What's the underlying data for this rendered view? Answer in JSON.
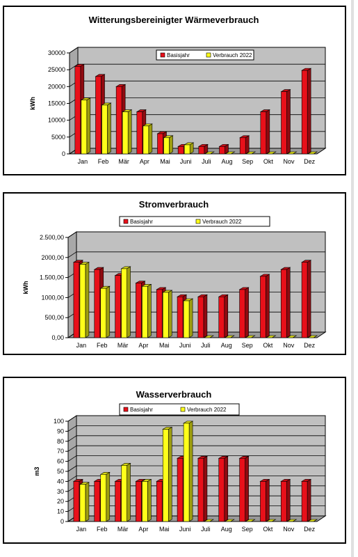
{
  "chart_data": [
    {
      "type": "bar",
      "title": "Witterungsbereinigter Wärmeverbrauch",
      "ylabel": "kWh",
      "ylim": [
        0,
        30000
      ],
      "yticks": [
        "0",
        "5000",
        "10000",
        "15000",
        "20000",
        "25000",
        "30000"
      ],
      "categories": [
        "Jan",
        "Feb",
        "Mär",
        "Apr",
        "Mai",
        "Juni",
        "Juli",
        "Aug",
        "Sep",
        "Okt",
        "Nov",
        "Dez"
      ],
      "legend_position": "top-center",
      "series": [
        {
          "name": "Basisjahr",
          "color": "#e8101a",
          "values": [
            26000,
            23000,
            20000,
            12500,
            6000,
            2200,
            2200,
            2200,
            4800,
            12500,
            18500,
            24800
          ]
        },
        {
          "name": "Verbrauch 2022",
          "color": "#ffff1a",
          "values": [
            16000,
            14500,
            12500,
            8300,
            4800,
            2700,
            0,
            0,
            0,
            0,
            0,
            0
          ]
        }
      ]
    },
    {
      "type": "bar",
      "title": "Stromverbrauch",
      "ylabel": "kWh",
      "ylim": [
        0,
        2500
      ],
      "yticks": [
        "0,00",
        "500,00",
        "1000,00",
        "1.500,00",
        "2000,00",
        "2.500,00"
      ],
      "categories": [
        "Jan",
        "Feb",
        "Mär",
        "Apr",
        "Mai",
        "Juni",
        "Juli",
        "Aug",
        "Sep",
        "Okt",
        "Nov",
        "Dez"
      ],
      "legend_position": "top-center",
      "series": [
        {
          "name": "Basisjahr",
          "color": "#e8101a",
          "values": [
            1880,
            1700,
            1550,
            1360,
            1200,
            1020,
            1020,
            1020,
            1200,
            1530,
            1700,
            1880
          ]
        },
        {
          "name": "Verbrauch 2022",
          "color": "#ffff1a",
          "values": [
            1830,
            1230,
            1720,
            1280,
            1130,
            920,
            0,
            0,
            0,
            0,
            0,
            0
          ]
        }
      ]
    },
    {
      "type": "bar",
      "title": "Wasserverbrauch",
      "ylabel": "m3",
      "ylim": [
        0,
        100
      ],
      "yticks": [
        "0",
        "10",
        "20",
        "30",
        "40",
        "50",
        "60",
        "70",
        "80",
        "90",
        "100"
      ],
      "categories": [
        "Jan",
        "Feb",
        "Mär",
        "Apr",
        "Mai",
        "Juni",
        "Juli",
        "Aug",
        "Sep",
        "Okt",
        "Nov",
        "Dez"
      ],
      "legend_position": "top-center",
      "series": [
        {
          "name": "Basisjahr",
          "color": "#e8101a",
          "values": [
            40,
            40,
            40,
            40,
            40,
            63,
            63,
            63,
            63,
            40,
            40,
            40
          ]
        },
        {
          "name": "Verbrauch 2022",
          "color": "#ffff1a",
          "values": [
            37,
            47,
            56,
            40,
            92,
            98,
            0,
            0,
            0,
            0,
            0,
            0
          ]
        }
      ]
    }
  ]
}
